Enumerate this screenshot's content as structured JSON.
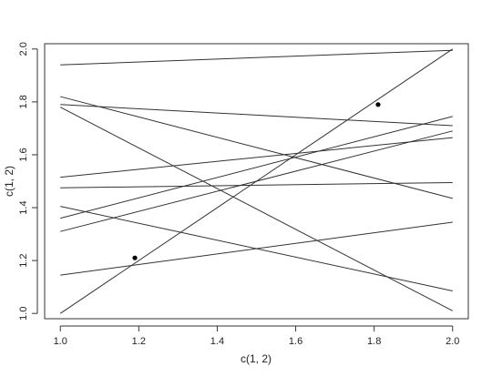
{
  "chart_data": {
    "type": "line",
    "title": "",
    "xlabel": "c(1, 2)",
    "ylabel": "c(1, 2)",
    "xlim": [
      0.96,
      2.04
    ],
    "ylim": [
      0.98,
      2.02
    ],
    "xticks": [
      1.0,
      1.2,
      1.4,
      1.6,
      1.8,
      2.0
    ],
    "yticks": [
      1.0,
      1.2,
      1.4,
      1.6,
      1.8,
      2.0
    ],
    "xtick_labels": [
      "1.0",
      "1.2",
      "1.4",
      "1.6",
      "1.8",
      "2.0"
    ],
    "ytick_labels": [
      "1.0",
      "1.2",
      "1.4",
      "1.6",
      "1.8",
      "2.0"
    ],
    "grid": false,
    "line_color": "#333333",
    "lines": [
      {
        "x": [
          1.0,
          2.0
        ],
        "y": [
          1.94,
          1.995
        ]
      },
      {
        "x": [
          1.0,
          2.0
        ],
        "y": [
          1.0,
          2.0
        ]
      },
      {
        "x": [
          1.0,
          2.0
        ],
        "y": [
          1.78,
          1.01
        ]
      },
      {
        "x": [
          1.0,
          2.0
        ],
        "y": [
          1.82,
          1.435
        ]
      },
      {
        "x": [
          1.0,
          2.0
        ],
        "y": [
          1.79,
          1.71
        ]
      },
      {
        "x": [
          1.0,
          2.0
        ],
        "y": [
          1.515,
          1.665
        ]
      },
      {
        "x": [
          1.0,
          2.0
        ],
        "y": [
          1.475,
          1.495
        ]
      },
      {
        "x": [
          1.0,
          2.0
        ],
        "y": [
          1.36,
          1.745
        ]
      },
      {
        "x": [
          1.0,
          2.0
        ],
        "y": [
          1.31,
          1.69
        ]
      },
      {
        "x": [
          1.0,
          2.0
        ],
        "y": [
          1.405,
          1.085
        ]
      },
      {
        "x": [
          1.0,
          2.0
        ],
        "y": [
          1.145,
          1.345
        ]
      }
    ],
    "points": [
      {
        "x": 1.19,
        "y": 1.21
      },
      {
        "x": 1.81,
        "y": 1.79
      }
    ]
  }
}
